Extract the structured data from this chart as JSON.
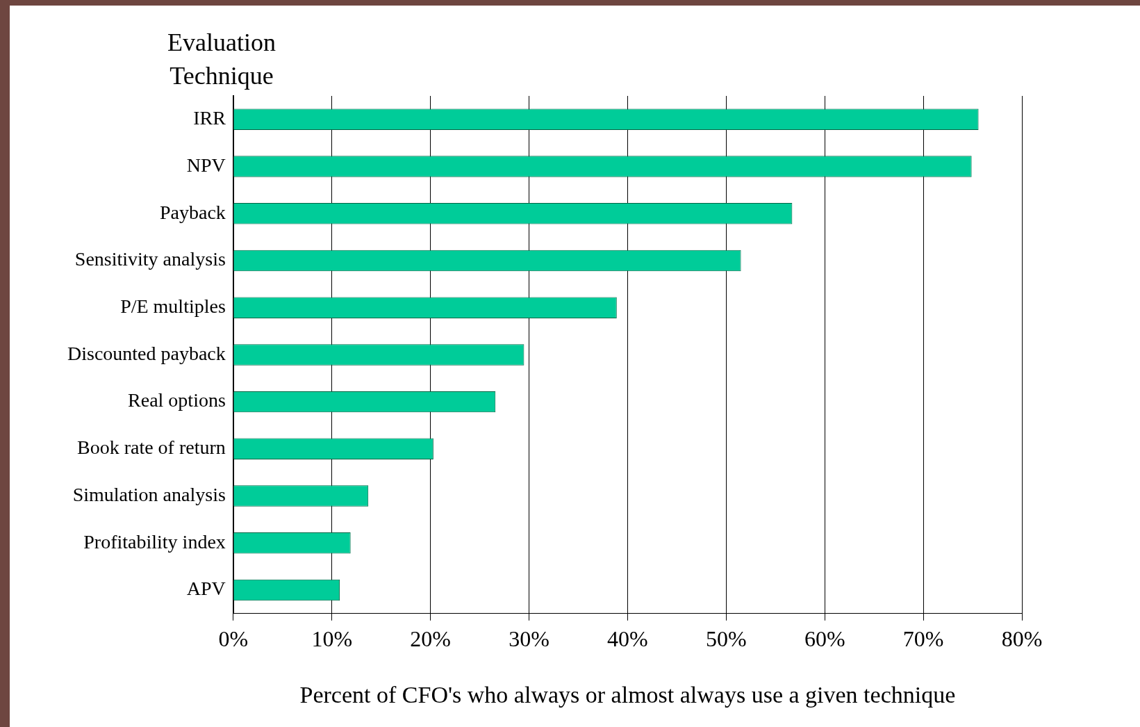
{
  "chart_data": {
    "type": "bar",
    "orientation": "horizontal",
    "ylabel": "Evaluation\nTechnique",
    "xlabel": "Percent of CFO's who always or almost always use a given technique",
    "categories": [
      "IRR",
      "NPV",
      "Payback",
      "Sensitivity analysis",
      "P/E multiples",
      "Discounted payback",
      "Real options",
      "Book rate of return",
      "Simulation analysis",
      "Profitability index",
      "APV"
    ],
    "values": [
      75.6,
      74.9,
      56.7,
      51.5,
      38.9,
      29.5,
      26.6,
      20.3,
      13.7,
      11.9,
      10.8
    ],
    "color": "#00cc99",
    "xlim": [
      0,
      80
    ],
    "xticks": [
      {
        "value": 0,
        "label": "0%"
      },
      {
        "value": 10,
        "label": "10%"
      },
      {
        "value": 20,
        "label": "20%"
      },
      {
        "value": 30,
        "label": "30%"
      },
      {
        "value": 40,
        "label": "40%"
      },
      {
        "value": 50,
        "label": "50%"
      },
      {
        "value": 60,
        "label": "60%"
      },
      {
        "value": 70,
        "label": "70%"
      },
      {
        "value": 80,
        "label": "80%"
      }
    ],
    "grid": "x",
    "legend": false
  }
}
